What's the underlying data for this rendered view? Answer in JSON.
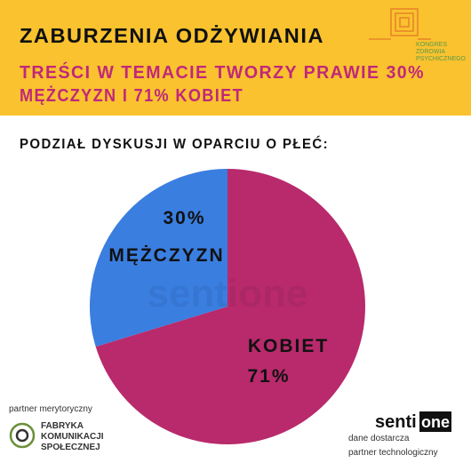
{
  "header": {
    "title": "ZABURZENIA ODŻYWIANIA",
    "subtitle": [
      "TREŚCI W TEMACIE TWORZY PRAWIE 30%",
      "MĘŻCZYZN I 71% KOBIET"
    ],
    "logo": [
      "KONGRES",
      "ZDROWIA",
      "PSYCHICZNEGO"
    ]
  },
  "chart_data": {
    "type": "pie",
    "title": "PODZIAŁ DYSKUSJI W OPARCIU O PŁEĆ:",
    "categories": [
      "MĘŻCZYZN",
      "KOBIET"
    ],
    "values": [
      30,
      71
    ],
    "value_labels": [
      "30%",
      "71%"
    ],
    "colors": [
      "#3a7ee0",
      "#b82a6c"
    ],
    "watermark": "sentione"
  },
  "footer": {
    "left_caption": "partner merytoryczny",
    "left_logo": [
      "FABRYKA",
      "KOMUNIKACJI",
      "SPOŁECZNEJ"
    ],
    "right_logo": [
      "senti",
      "one"
    ],
    "right_caption": [
      "dane dostarcza",
      "partner technologiczny"
    ]
  }
}
